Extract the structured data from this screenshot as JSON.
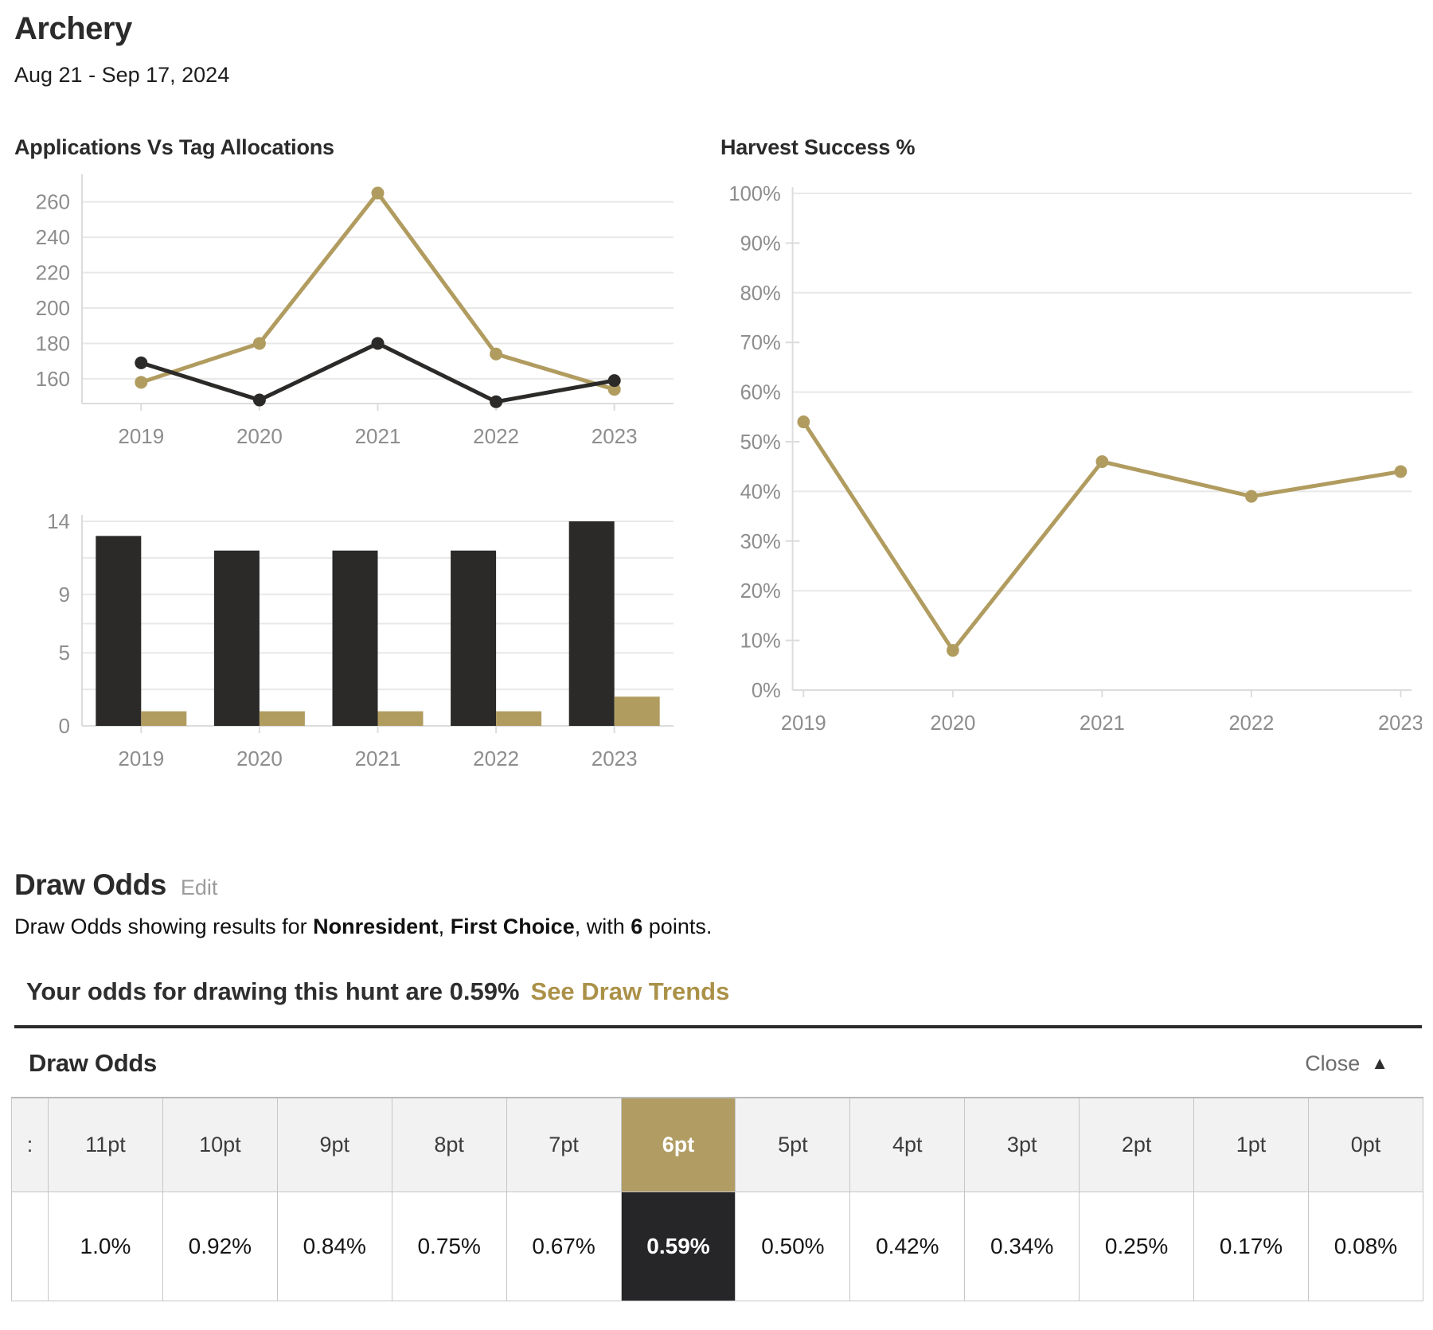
{
  "page": {
    "title": "Archery",
    "date_range": "Aug 21 - Sep 17, 2024"
  },
  "colors": {
    "gold": "#b19c60",
    "black": "#2b2a28",
    "table_gold": "#b19c63",
    "table_dark": "#262528",
    "link_gold": "#ab9148"
  },
  "chart_data": [
    {
      "id": "apps-line",
      "type": "line",
      "title": "Applications Vs Tag Allocations",
      "categories": [
        "2019",
        "2020",
        "2021",
        "2022",
        "2023"
      ],
      "series": [
        {
          "name": "gold-series",
          "color": "gold",
          "values": [
            158,
            180,
            265,
            174,
            154
          ]
        },
        {
          "name": "black-series",
          "color": "black",
          "values": [
            169,
            148,
            180,
            147,
            159
          ]
        }
      ],
      "ylim": [
        146,
        272
      ],
      "ylabels": [
        160,
        180,
        200,
        220,
        240,
        260
      ],
      "gridlines": [
        160,
        180,
        200,
        220,
        240,
        260
      ],
      "tick_dashes": [],
      "tick_suffix": "",
      "legend": "none",
      "grid": "on"
    },
    {
      "id": "apps-bars",
      "type": "bar",
      "title": "",
      "categories": [
        "2019",
        "2020",
        "2021",
        "2022",
        "2023"
      ],
      "series": [
        {
          "name": "black-series",
          "color": "black",
          "values": [
            13,
            12,
            12,
            12,
            14
          ]
        },
        {
          "name": "gold-series",
          "color": "gold",
          "values": [
            1,
            1,
            1,
            1,
            2
          ]
        }
      ],
      "ylim": [
        0,
        14
      ],
      "ylabels": [
        0,
        5,
        9,
        14
      ],
      "gridlines": [
        0,
        2.5,
        5,
        7,
        9,
        11.5,
        14
      ],
      "tick_dashes": [],
      "tick_suffix": "",
      "legend": "none",
      "grid": "on"
    },
    {
      "id": "harvest",
      "type": "line",
      "title": "Harvest Success %",
      "categories": [
        "2019",
        "2020",
        "2021",
        "2022",
        "2023"
      ],
      "series": [
        {
          "name": "harvest-success",
          "color": "gold",
          "values": [
            54,
            8,
            46,
            39,
            44
          ]
        }
      ],
      "ylim": [
        0,
        100
      ],
      "ylabels": [
        0,
        10,
        20,
        30,
        40,
        50,
        60,
        70,
        80,
        90,
        100
      ],
      "gridlines": [
        0,
        20,
        40,
        60,
        80,
        100
      ],
      "tick_dashes": [
        10,
        30,
        50,
        70,
        90
      ],
      "tick_suffix": "%",
      "legend": "none",
      "grid": "on"
    }
  ],
  "draw_odds": {
    "heading": "Draw Odds",
    "edit_label": "Edit",
    "description": {
      "prefix": "Draw Odds showing results for ",
      "residency": "Nonresident",
      "sep1": ", ",
      "choice": "First Choice",
      "sep2": ", with ",
      "points": "6",
      "suffix": " points."
    },
    "banner_text": "Your odds for drawing this hunt are 0.59%",
    "trends_link": "See Draw Trends",
    "panel_heading": "Draw Odds",
    "close_label": "Close",
    "close_icon": "▲"
  },
  "draw_odds_table": {
    "clipped_first_column": ":",
    "columns": [
      "11pt",
      "10pt",
      "9pt",
      "8pt",
      "7pt",
      "6pt",
      "5pt",
      "4pt",
      "3pt",
      "2pt",
      "1pt",
      "0pt"
    ],
    "values": [
      "1.0%",
      "0.92%",
      "0.84%",
      "0.75%",
      "0.67%",
      "0.59%",
      "0.50%",
      "0.42%",
      "0.34%",
      "0.25%",
      "0.17%",
      "0.08%"
    ],
    "highlight_index": 5
  }
}
